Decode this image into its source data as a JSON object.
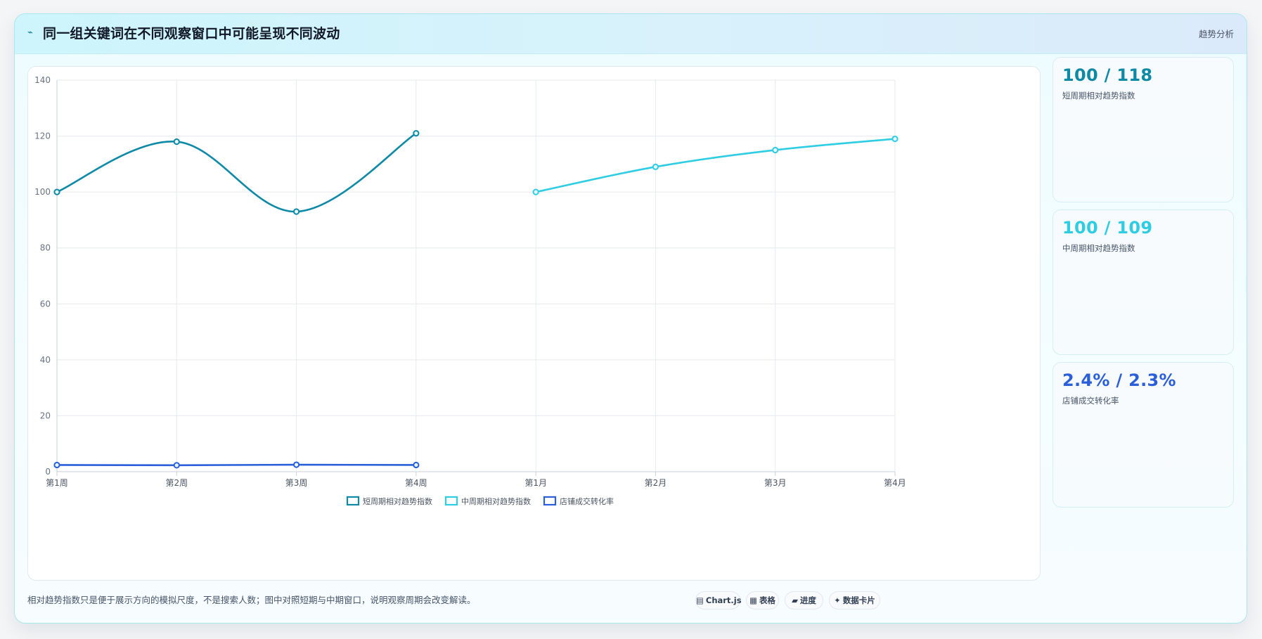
{
  "header": {
    "icon": "trend-line-icon",
    "title": "同一组关键词在不同观察窗口中可能呈现不同波动",
    "tag": "趋势分析"
  },
  "chart_data": {
    "type": "line",
    "x": [
      "第1周",
      "第2周",
      "第3周",
      "第4周",
      "第1月",
      "第2月",
      "第3月",
      "第4月"
    ],
    "series": [
      {
        "name": "短周期相对趋势指数",
        "color": "#0e8aa6",
        "values": [
          100,
          118,
          93,
          121,
          null,
          null,
          null,
          null
        ],
        "curved": true
      },
      {
        "name": "中周期相对趋势指数",
        "color": "#2fcde3",
        "values": [
          null,
          null,
          null,
          null,
          100,
          109,
          115,
          119
        ],
        "curved": true
      },
      {
        "name": "店铺成交转化率",
        "color": "#2b5fd9",
        "values": [
          2.4,
          2.3,
          2.5,
          2.4,
          null,
          null,
          null,
          null
        ],
        "curved": false
      }
    ],
    "ylim": [
      0,
      140
    ],
    "yticks": [
      "0",
      "20",
      "40",
      "60",
      "80",
      "100",
      "120",
      "140"
    ],
    "grid": true,
    "legend_position": "bottom"
  },
  "stats": [
    {
      "value": "100 / 118",
      "label": "短周期相对趋势指数",
      "color": "#0e8aa6"
    },
    {
      "value": "100 / 109",
      "label": "中周期相对趋势指数",
      "color": "#2fcde3"
    },
    {
      "value": "2.4% / 2.3%",
      "label": "店铺成交转化率",
      "color": "#2b5fd9"
    }
  ],
  "footer": {
    "note": "相对趋势指数只是便于展示方向的模拟尺度，不是搜索人数；图中对照短期与中期窗口，说明观察周期会改变解读。",
    "chips": [
      {
        "icon": "▤",
        "icon_name": "chart-icon",
        "label": "Chart.js"
      },
      {
        "icon": "▦",
        "icon_name": "table-icon",
        "label": "表格"
      },
      {
        "icon": "▰",
        "icon_name": "progress-icon",
        "label": "进度"
      },
      {
        "icon": "✦",
        "icon_name": "sparkle-icon",
        "label": "数据卡片"
      }
    ]
  }
}
